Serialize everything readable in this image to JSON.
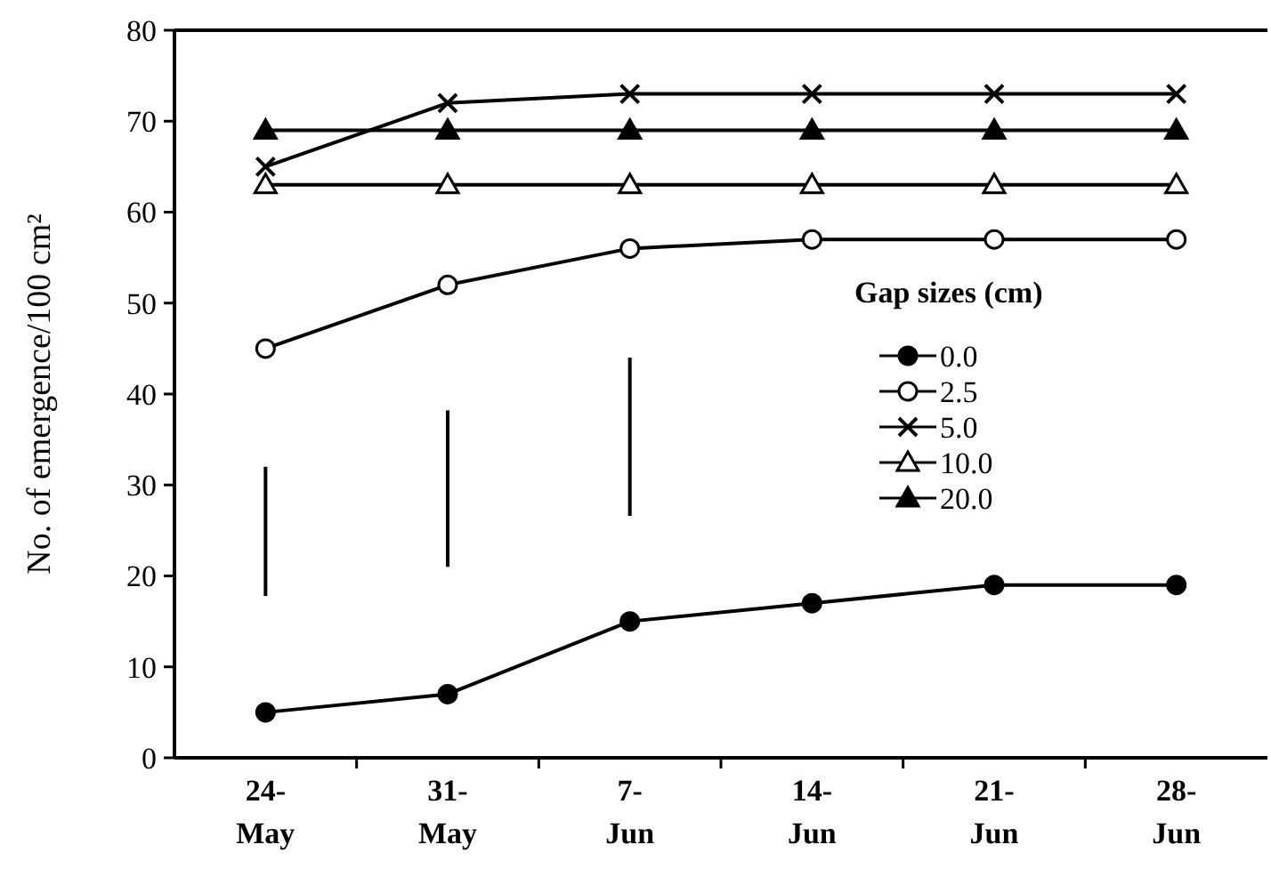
{
  "chart_data": {
    "type": "line",
    "ylabel": "No. of emergence/100 cm²",
    "legend_title": "Gap sizes (cm)",
    "legend": "right",
    "ylim": [
      0,
      80
    ],
    "yticks": [
      0,
      10,
      20,
      30,
      40,
      50,
      60,
      70,
      80
    ],
    "categories": [
      "24-\nMay",
      "31-\nMay",
      "7-\nJun",
      "14-\nJun",
      "21-\nJun",
      "28-\nJun"
    ],
    "series": [
      {
        "name": "0.0",
        "color": "#000000",
        "marker": "circle",
        "values": [
          5,
          7,
          15,
          17,
          19,
          19
        ]
      },
      {
        "name": "2.5",
        "color": "#000000",
        "marker": "circle",
        "values": [
          45,
          52,
          56,
          57,
          57,
          57
        ]
      },
      {
        "name": "5.0",
        "color": "#000000",
        "marker": "cross",
        "values": [
          65,
          72,
          73,
          73,
          73,
          73
        ]
      },
      {
        "name": "10.0",
        "color": "#000000",
        "marker": "triangle",
        "values": [
          63,
          63,
          63,
          63,
          63,
          63
        ]
      },
      {
        "name": "20.0",
        "color": "#000000",
        "marker": "triangle",
        "values": [
          69,
          69,
          69,
          69,
          69,
          69
        ]
      },
      {
        "type": "bar",
        "color": "#000000",
        "base": [
          17.8,
          21,
          26.6,
          null,
          null,
          null
        ],
        "values": [
          14.2,
          17.2,
          17.4,
          null,
          null,
          null
        ]
      }
    ]
  }
}
